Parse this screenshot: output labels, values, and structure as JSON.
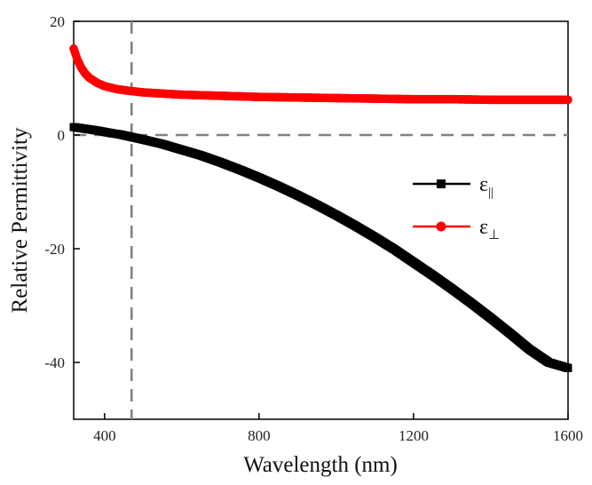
{
  "chart_data": {
    "type": "line",
    "title": "",
    "xlabel": "Wavelength (nm)",
    "ylabel": "Relative Permittivity",
    "xlim": [
      320,
      1600
    ],
    "ylim": [
      -50,
      20
    ],
    "xticks": [
      400,
      800,
      1200,
      1600
    ],
    "yticks": [
      20,
      0,
      -20,
      -40
    ],
    "xtick_labels": [
      "400",
      "800",
      "1200",
      "1600"
    ],
    "ytick_labels": [
      "20",
      "0",
      "-20",
      "-40"
    ],
    "reference_lines": {
      "x": 470,
      "y": 0,
      "style": "dashed",
      "color": "#808080"
    },
    "legend_position": "right-middle",
    "series": [
      {
        "name": "ε",
        "subscript": "||",
        "marker": "square",
        "color": "#000000",
        "x": [
          320,
          340,
          360,
          380,
          400,
          420,
          440,
          460,
          480,
          500,
          550,
          600,
          650,
          700,
          750,
          800,
          850,
          900,
          950,
          1000,
          1050,
          1100,
          1150,
          1200,
          1250,
          1300,
          1350,
          1400,
          1450,
          1500,
          1550,
          1600
        ],
        "values": [
          1.4,
          1.2,
          1.0,
          0.8,
          0.55,
          0.3,
          0.1,
          -0.2,
          -0.5,
          -0.8,
          -1.6,
          -2.6,
          -3.6,
          -4.8,
          -6.1,
          -7.5,
          -9.0,
          -10.6,
          -12.3,
          -14.1,
          -16.0,
          -18.0,
          -20.1,
          -22.4,
          -24.7,
          -27.1,
          -29.6,
          -32.2,
          -34.9,
          -37.7,
          -40.0,
          -41.0
        ]
      },
      {
        "name": "ε",
        "subscript": "⊥",
        "marker": "circle",
        "color": "#ff0000",
        "x": [
          320,
          330,
          340,
          350,
          360,
          380,
          400,
          430,
          460,
          500,
          550,
          600,
          700,
          800,
          900,
          1000,
          1100,
          1200,
          1300,
          1400,
          1500,
          1600
        ],
        "values": [
          15.2,
          13.2,
          11.8,
          10.8,
          10.1,
          9.2,
          8.6,
          8.1,
          7.8,
          7.5,
          7.3,
          7.1,
          6.9,
          6.7,
          6.6,
          6.5,
          6.4,
          6.3,
          6.3,
          6.2,
          6.2,
          6.2
        ]
      }
    ]
  }
}
